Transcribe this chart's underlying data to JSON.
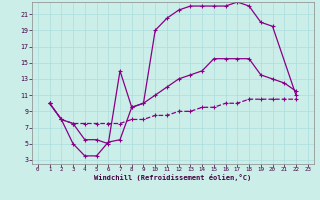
{
  "xlabel": "Windchill (Refroidissement éolien,°C)",
  "bg_color": "#cceee8",
  "grid_color": "#aadddd",
  "line_color": "#880088",
  "xlim": [
    -0.5,
    23.5
  ],
  "ylim": [
    2.5,
    22.5
  ],
  "xticks": [
    0,
    1,
    2,
    3,
    4,
    5,
    6,
    7,
    8,
    9,
    10,
    11,
    12,
    13,
    14,
    15,
    16,
    17,
    18,
    19,
    20,
    21,
    22,
    23
  ],
  "yticks": [
    3,
    5,
    7,
    9,
    11,
    13,
    15,
    17,
    19,
    21
  ],
  "curve1_x": [
    1,
    2,
    3,
    4,
    5,
    6,
    7,
    8,
    9,
    10,
    11,
    12,
    13,
    14,
    15,
    16,
    17,
    18,
    19,
    20,
    22
  ],
  "curve1_y": [
    10,
    8,
    7.5,
    5.5,
    5.5,
    5.0,
    14,
    9.5,
    10.0,
    19.0,
    20.5,
    21.5,
    22.0,
    22.0,
    22.0,
    22.0,
    22.5,
    22.0,
    20.0,
    19.5,
    11.0
  ],
  "curve2_x": [
    1,
    2,
    3,
    4,
    5,
    6,
    7,
    8,
    9,
    10,
    11,
    12,
    13,
    14,
    15,
    16,
    17,
    18,
    19,
    20,
    21,
    22
  ],
  "curve2_y": [
    10,
    8,
    5.0,
    3.5,
    3.5,
    5.2,
    5.5,
    9.5,
    10.0,
    11.0,
    12.0,
    13.0,
    13.5,
    14.0,
    15.5,
    15.5,
    15.5,
    15.5,
    13.5,
    13.0,
    12.5,
    11.5
  ],
  "curve3_x": [
    1,
    2,
    3,
    4,
    5,
    6,
    7,
    8,
    9,
    10,
    11,
    12,
    13,
    14,
    15,
    16,
    17,
    18,
    19,
    20,
    21,
    22
  ],
  "curve3_y": [
    10,
    8,
    7.5,
    7.5,
    7.5,
    7.5,
    7.5,
    8.0,
    8.0,
    8.5,
    8.5,
    9.0,
    9.0,
    9.5,
    9.5,
    10.0,
    10.0,
    10.5,
    10.5,
    10.5,
    10.5,
    10.5
  ]
}
